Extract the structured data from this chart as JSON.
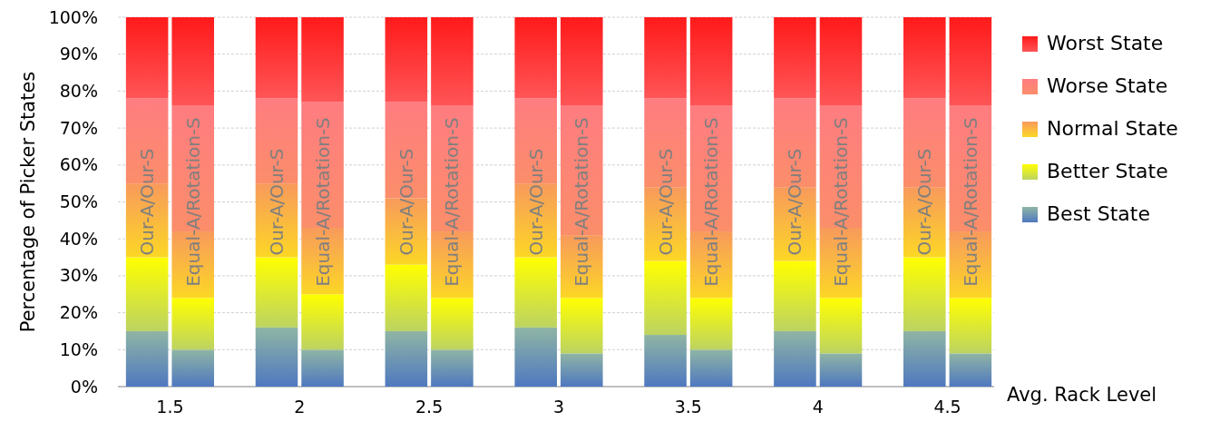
{
  "chart_data": {
    "type": "bar",
    "stacked": true,
    "ylabel": "Percentage of Picker States",
    "xlabel": "Avg. Rack Level",
    "categories": [
      "Our-A/Our-S",
      "Equal-A/Rotation-S",
      "Our-A/Our-S",
      "Equal-A/Rotation-S",
      "Our-A/Our-S",
      "Equal-A/Rotation-S",
      "Our-A/Our-S",
      "Equal-A/Rotation-S",
      "Our-A/Our-S",
      "Equal-A/Rotation-S",
      "Our-A/Our-S",
      "Equal-A/Rotation-S",
      "Our-A/Our-S",
      "Equal-A/Rotation-S"
    ],
    "annotations": [
      "1.5",
      "2",
      "2.5",
      "3",
      "3.5",
      "4",
      "4.5"
    ],
    "series": [
      {
        "name": "Best State",
        "color": "#8fb5a4",
        "values": [
          15,
          10,
          16,
          10,
          15,
          10,
          16,
          9,
          14,
          10,
          15,
          9,
          15,
          9
        ]
      },
      {
        "name": "Better State",
        "color": "#ffff00",
        "values": [
          20,
          14,
          19,
          15,
          18,
          14,
          19,
          15,
          20,
          14,
          19,
          15,
          20,
          15
        ]
      },
      {
        "name": "Normal State",
        "color": "#f89a5c",
        "values": [
          20,
          18,
          20,
          18,
          18,
          18,
          20,
          17,
          20,
          18,
          20,
          19,
          19,
          18
        ]
      },
      {
        "name": "Worse State",
        "color": "#ff7c80",
        "values": [
          23,
          34,
          23,
          34,
          26,
          34,
          23,
          35,
          24,
          34,
          24,
          33,
          24,
          34
        ]
      },
      {
        "name": "Worst State",
        "color": "#ff1a1a",
        "values": [
          22,
          24,
          22,
          23,
          23,
          24,
          22,
          24,
          22,
          24,
          22,
          24,
          22,
          24
        ]
      }
    ],
    "ylim": [
      0,
      100
    ],
    "yticks": [
      {
        "value": 0,
        "label": "0%"
      },
      {
        "value": 10,
        "label": "10%"
      },
      {
        "value": 20,
        "label": "20%"
      },
      {
        "value": 30,
        "label": "30%"
      },
      {
        "value": 40,
        "label": "40%"
      },
      {
        "value": 50,
        "label": "50%"
      },
      {
        "value": 60,
        "label": "60%"
      },
      {
        "value": 70,
        "label": "70%"
      },
      {
        "value": 80,
        "label": "80%"
      },
      {
        "value": 90,
        "label": "90%"
      },
      {
        "value": 100,
        "label": "100%"
      }
    ],
    "grid": "y",
    "legend": "right"
  }
}
